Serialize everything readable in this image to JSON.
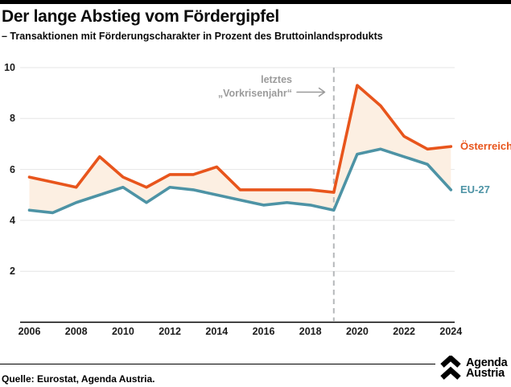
{
  "page": {
    "title": "Der lange Abstieg vom Fördergipfel",
    "subtitle": "– Transaktionen mit Förderungscharakter in Prozent des Bruttoinlandsprodukts",
    "source": "Quelle: Eurostat, Agenda Austria.",
    "logo": {
      "icon": "double-chevron-up-icon",
      "line1": "Agenda",
      "line2": "Austria"
    }
  },
  "annotation": {
    "line1": "letztes",
    "line2": "„Vorkrisenjahr“",
    "arrow": "right-arrow",
    "target_year": 2019,
    "color": "#9b9b9b"
  },
  "chart_data": {
    "type": "line",
    "title": "Der lange Abstieg vom Fördergipfel",
    "subtitle": "– Transaktionen mit Förderungscharakter in Prozent des Bruttoinlandsprodukts",
    "x": [
      2006,
      2007,
      2008,
      2009,
      2010,
      2011,
      2012,
      2013,
      2014,
      2015,
      2016,
      2017,
      2018,
      2019,
      2020,
      2021,
      2022,
      2023,
      2024
    ],
    "series": [
      {
        "name": "Österreich",
        "color": "#E8551C",
        "values": [
          5.7,
          5.5,
          5.3,
          6.5,
          5.7,
          5.3,
          5.8,
          5.8,
          6.1,
          5.2,
          5.2,
          5.2,
          5.2,
          5.1,
          9.3,
          8.5,
          7.3,
          6.8,
          6.9
        ]
      },
      {
        "name": "EU-27",
        "color": "#4D93A5",
        "values": [
          4.4,
          4.3,
          4.7,
          5.0,
          5.3,
          4.7,
          5.3,
          5.2,
          5.0,
          4.8,
          4.6,
          4.7,
          4.6,
          4.4,
          6.6,
          6.8,
          6.5,
          6.2,
          5.2
        ]
      }
    ],
    "fill_between_color": "#FCEFE2",
    "x_tick_labels": [
      "2006",
      "2008",
      "2010",
      "2012",
      "2014",
      "2016",
      "2018",
      "2020",
      "2022",
      "2024"
    ],
    "y_ticks": [
      2,
      4,
      6,
      8,
      10
    ],
    "ylim": [
      0,
      10.5
    ],
    "xlabel": "",
    "ylabel": "",
    "grid": "horizontal",
    "gridline_color": "#e6e6e6",
    "axis_color": "#000000",
    "dashed_vline_x": 2019,
    "dashed_vline_color": "#b5b8ba",
    "legend_position": "right-of-line-ends"
  }
}
